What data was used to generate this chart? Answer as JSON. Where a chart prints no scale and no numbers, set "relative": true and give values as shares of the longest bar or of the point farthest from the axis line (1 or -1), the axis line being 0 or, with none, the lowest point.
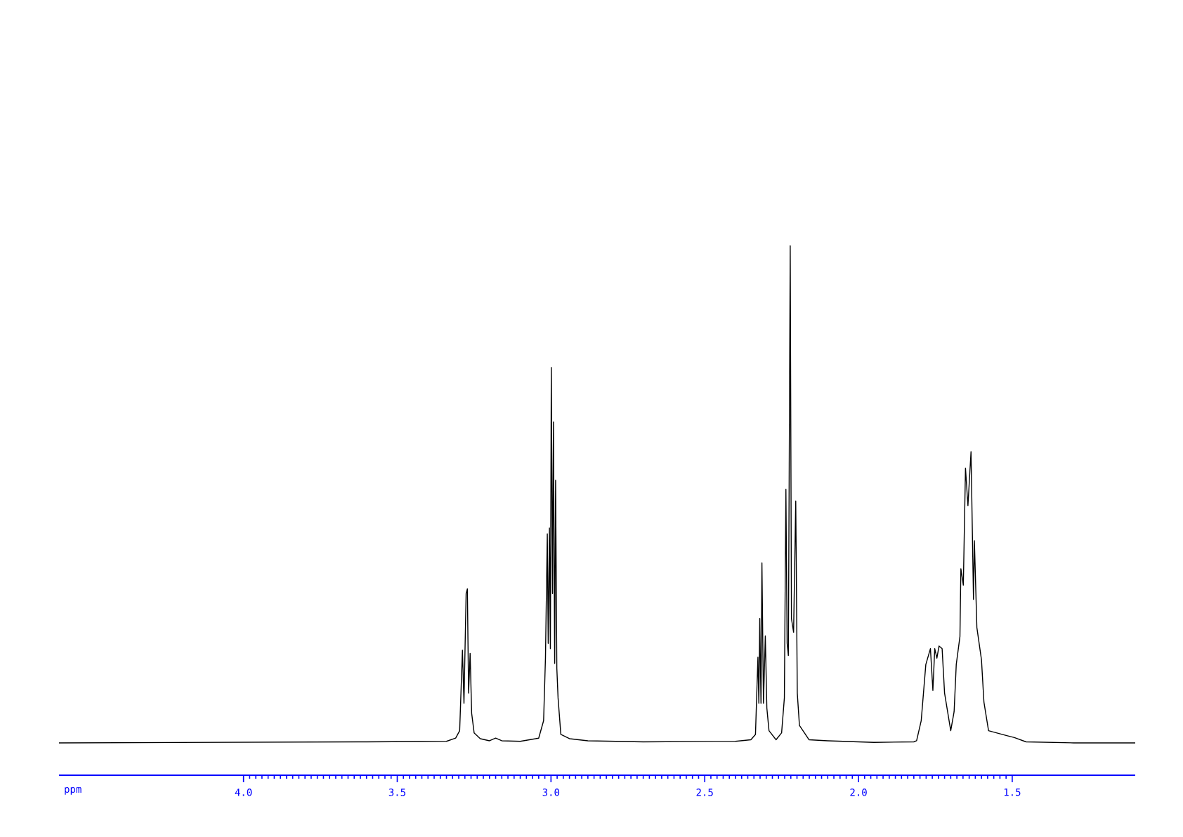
{
  "chart_data": {
    "type": "line",
    "xlabel": "ppm",
    "relative": true,
    "color": "#000000",
    "xlim": [
      4.6,
      1.1
    ],
    "xticks": [
      {
        "value": 4.0,
        "label": "4.0"
      },
      {
        "value": 3.5,
        "label": "3.5"
      },
      {
        "value": 3.0,
        "label": "3.0"
      },
      {
        "value": 2.5,
        "label": "2.5"
      },
      {
        "value": 2.0,
        "label": "2.0"
      },
      {
        "value": 1.5,
        "label": "1.5"
      }
    ],
    "x": [
      4.6,
      3.6,
      3.34,
      3.31,
      3.297,
      3.288,
      3.283,
      3.276,
      3.272,
      3.268,
      3.263,
      3.258,
      3.25,
      3.23,
      3.2,
      3.18,
      3.16,
      3.1,
      3.04,
      3.024,
      3.018,
      3.012,
      3.009,
      3.005,
      3.002,
      2.999,
      2.995,
      2.992,
      2.988,
      2.985,
      2.981,
      2.977,
      2.968,
      2.94,
      2.88,
      2.7,
      2.4,
      2.35,
      2.335,
      2.327,
      2.324,
      2.321,
      2.317,
      2.314,
      2.309,
      2.303,
      2.298,
      2.291,
      2.268,
      2.25,
      2.241,
      2.236,
      2.232,
      2.228,
      2.222,
      2.218,
      2.211,
      2.204,
      2.199,
      2.192,
      2.161,
      2.1,
      1.95,
      1.82,
      1.811,
      1.796,
      1.781,
      1.766,
      1.758,
      1.752,
      1.745,
      1.738,
      1.728,
      1.72,
      1.7,
      1.689,
      1.682,
      1.67,
      1.667,
      1.659,
      1.652,
      1.644,
      1.634,
      1.626,
      1.623,
      1.615,
      1.6,
      1.592,
      1.577,
      1.52,
      1.493,
      1.455,
      1.3,
      1.1
    ],
    "values": [
      0.061,
      0.063,
      0.064,
      0.07,
      0.084,
      0.236,
      0.136,
      0.343,
      0.352,
      0.155,
      0.23,
      0.117,
      0.08,
      0.069,
      0.065,
      0.07,
      0.065,
      0.064,
      0.07,
      0.103,
      0.221,
      0.456,
      0.249,
      0.467,
      0.239,
      0.77,
      0.343,
      0.667,
      0.211,
      0.557,
      0.202,
      0.146,
      0.077,
      0.069,
      0.065,
      0.063,
      0.064,
      0.067,
      0.077,
      0.223,
      0.136,
      0.296,
      0.136,
      0.401,
      0.136,
      0.263,
      0.127,
      0.084,
      0.067,
      0.08,
      0.146,
      0.54,
      0.249,
      0.226,
      1.0,
      0.296,
      0.27,
      0.518,
      0.155,
      0.094,
      0.067,
      0.065,
      0.062,
      0.063,
      0.065,
      0.103,
      0.209,
      0.239,
      0.16,
      0.239,
      0.221,
      0.244,
      0.239,
      0.155,
      0.084,
      0.12,
      0.209,
      0.262,
      0.39,
      0.359,
      0.58,
      0.509,
      0.611,
      0.332,
      0.443,
      0.279,
      0.218,
      0.138,
      0.084,
      0.075,
      0.071,
      0.063,
      0.061,
      0.061
    ]
  }
}
